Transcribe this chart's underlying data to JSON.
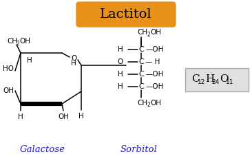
{
  "title": "Lactitol",
  "title_bg": "#E8911A",
  "title_color": "black",
  "galactose_label": "Galactose",
  "sorbitol_label": "Sorbitol",
  "label_color": "#2020CC",
  "bg_color": "#ffffff",
  "formula_box_bg": "#e0e0e0",
  "formula_box_edge": "#aaaaaa"
}
